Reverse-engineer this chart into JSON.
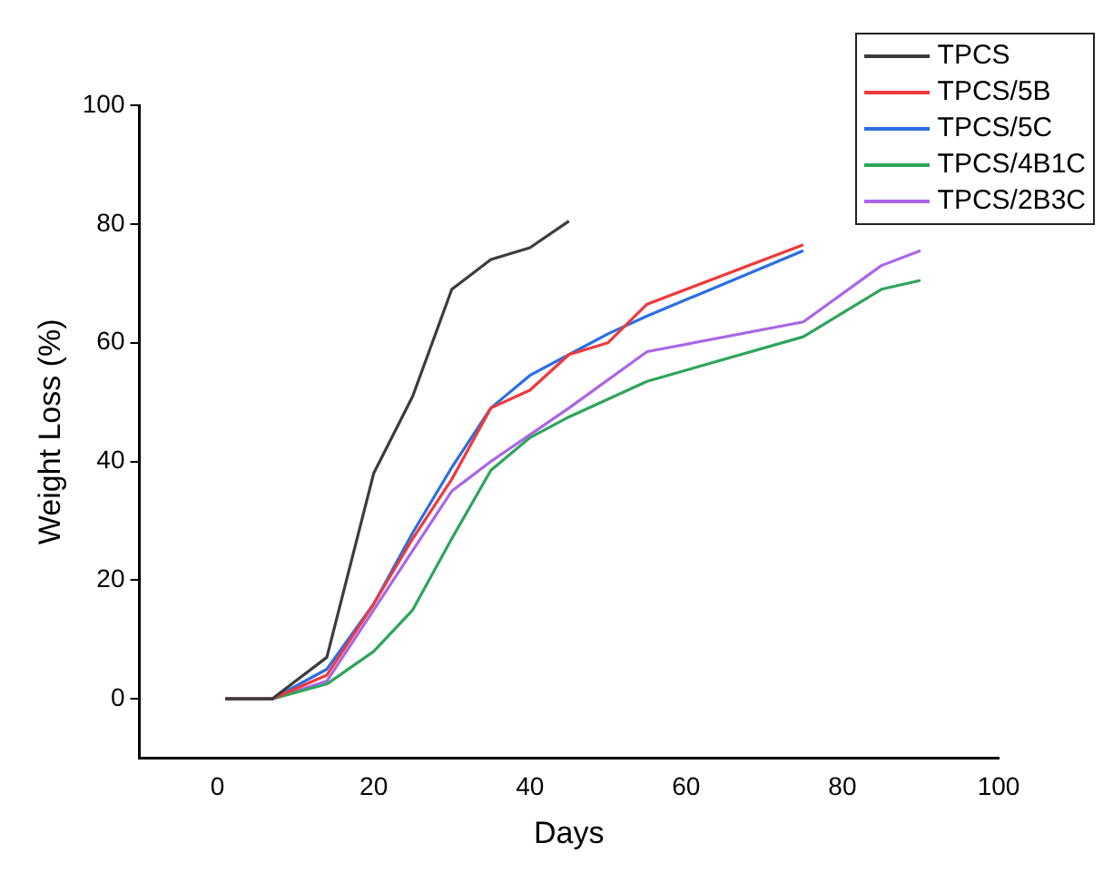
{
  "chart_data": {
    "type": "line",
    "xlabel": "Days",
    "ylabel": "Weight Loss (%)",
    "xlim": [
      -10,
      100
    ],
    "xticks": [
      0,
      20,
      40,
      60,
      80,
      100
    ],
    "ylim": [
      -10,
      100
    ],
    "yticks": [
      0,
      20,
      40,
      60,
      80,
      100
    ],
    "grid": false,
    "legend": "top right",
    "marker": "none",
    "line_style": "solid",
    "series": [
      {
        "name": "TPCS",
        "color": "#3c3c3c",
        "x": [
          1,
          7,
          14,
          20,
          25,
          30,
          35,
          40,
          45
        ],
        "values": [
          0,
          0,
          7,
          38,
          51,
          69,
          74,
          76,
          80.5
        ]
      },
      {
        "name": "TPCS/5B",
        "color": "#ee3a3a",
        "x": [
          1,
          7,
          14,
          20,
          25,
          30,
          35,
          40,
          45,
          50,
          55,
          75
        ],
        "values": [
          0,
          0,
          4,
          16,
          27,
          37,
          49,
          52,
          58,
          60,
          66.5,
          76.5
        ]
      },
      {
        "name": "TPCS/5C",
        "color": "#2a6ee6",
        "x": [
          1,
          7,
          14,
          20,
          25,
          30,
          35,
          40,
          45,
          50,
          55,
          75
        ],
        "values": [
          0,
          0,
          5,
          16,
          28,
          39,
          49,
          54.5,
          58,
          61.5,
          64.5,
          75.5
        ]
      },
      {
        "name": "TPCS/4B1C",
        "color": "#2ea55a",
        "x": [
          1,
          7,
          14,
          20,
          25,
          30,
          35,
          40,
          45,
          55,
          75,
          85,
          90
        ],
        "values": [
          0,
          0,
          2.5,
          8,
          15,
          27,
          38.5,
          44,
          47.5,
          53.5,
          61,
          69,
          70.5
        ]
      },
      {
        "name": "TPCS/2B3C",
        "color": "#aa66e6",
        "x": [
          1,
          7,
          14,
          20,
          25,
          30,
          35,
          40,
          45,
          55,
          75,
          85,
          90
        ],
        "values": [
          0,
          0,
          3,
          15,
          25,
          35,
          40,
          44.5,
          49,
          58.5,
          63.5,
          73,
          75.5
        ]
      }
    ]
  }
}
